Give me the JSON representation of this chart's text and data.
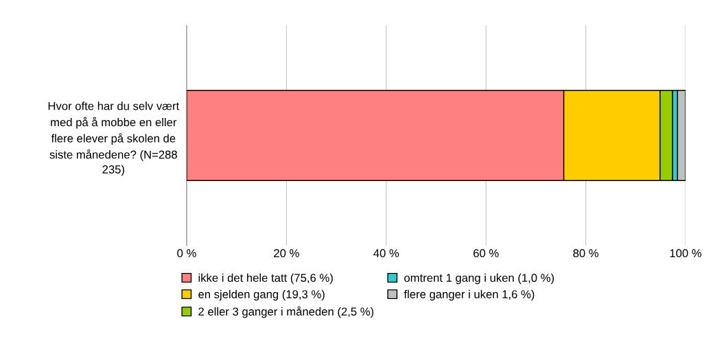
{
  "chart_data": {
    "type": "bar",
    "orientation": "horizontal",
    "stacked": true,
    "categories": [
      "Hvor ofte har du selv vært\nmed på å mobbe en eller\nflere elever på skolen de\nsiste månedene? (N=288\n235)"
    ],
    "series": [
      {
        "name": "ikke i det hele tatt (75,6 %)",
        "color": "#ff8080",
        "values": [
          75.6
        ]
      },
      {
        "name": "en sjelden gang (19,3 %)",
        "color": "#ffcc00",
        "values": [
          19.3
        ]
      },
      {
        "name": "2 eller 3 ganger i måneden (2,5 %)",
        "color": "#99cc00",
        "values": [
          2.5
        ]
      },
      {
        "name": "omtrent 1 gang i uken (1,0 %)",
        "color": "#33cccc",
        "values": [
          1.0
        ]
      },
      {
        "name": "flere ganger i uken 1,6 %)",
        "color": "#c0c0c0",
        "values": [
          1.6
        ]
      }
    ],
    "xlim": [
      0,
      100
    ],
    "xticks": [
      {
        "value": 0,
        "label": "0 %"
      },
      {
        "value": 20,
        "label": "20 %"
      },
      {
        "value": 40,
        "label": "40 %"
      },
      {
        "value": 60,
        "label": "60 %"
      },
      {
        "value": 80,
        "label": "80 %"
      },
      {
        "value": 100,
        "label": "100 %"
      }
    ],
    "grid": "x",
    "legend": "bottom"
  }
}
